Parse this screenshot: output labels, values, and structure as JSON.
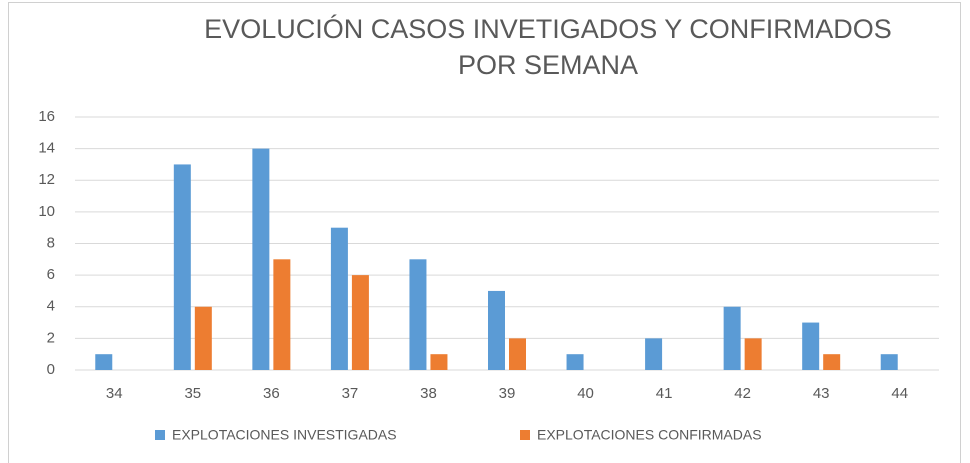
{
  "chart_data": {
    "type": "bar",
    "title": [
      "EVOLUCIÓN CASOS INVETIGADOS Y CONFIRMADOS",
      "POR SEMANA"
    ],
    "categories": [
      "34",
      "35",
      "36",
      "37",
      "38",
      "39",
      "40",
      "41",
      "42",
      "43",
      "44"
    ],
    "series": [
      {
        "name": "EXPLOTACIONES INVESTIGADAS",
        "color": "#5b9bd5",
        "values": [
          1,
          13,
          14,
          9,
          7,
          5,
          1,
          2,
          4,
          3,
          1
        ]
      },
      {
        "name": "EXPLOTACIONES CONFIRMADAS",
        "color": "#ed7d31",
        "values": [
          0,
          4,
          7,
          6,
          1,
          2,
          0,
          0,
          2,
          1,
          0
        ]
      }
    ],
    "ylim": [
      0,
      16
    ],
    "yticks": [
      0,
      2,
      4,
      6,
      8,
      10,
      12,
      14,
      16
    ],
    "grid": true,
    "legend": "bottom"
  }
}
